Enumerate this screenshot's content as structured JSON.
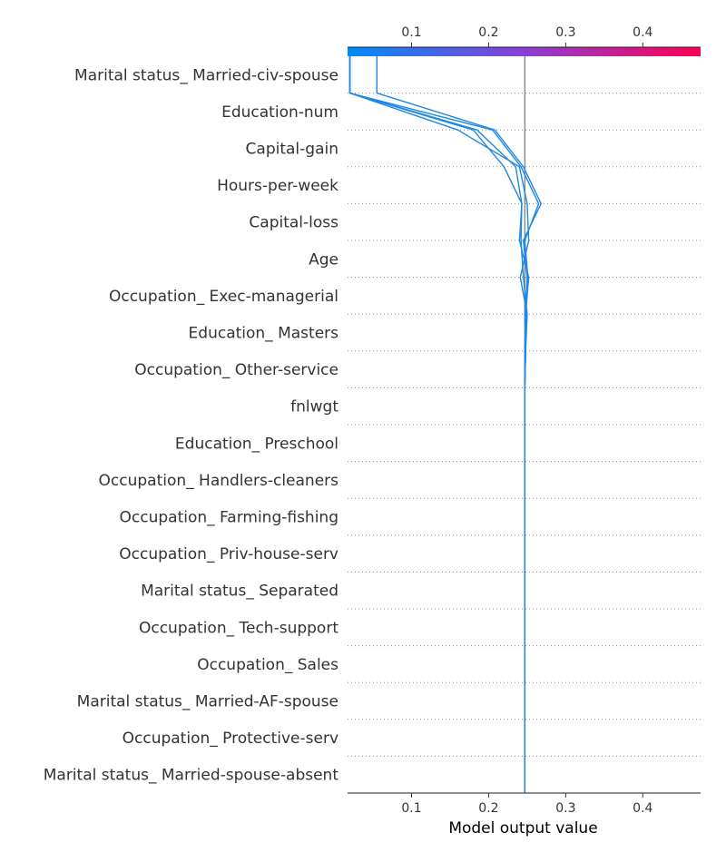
{
  "chart_data": {
    "type": "decision",
    "xlabel": "Model output value",
    "xticks": [
      0.1,
      0.2,
      0.3,
      0.4
    ],
    "xlim": [
      0.017,
      0.475
    ],
    "base_value": 0.247,
    "colormap": [
      "#008bfb",
      "#8a3fd6",
      "#ff0052"
    ],
    "line_color": "#1e88e5",
    "features": [
      "Marital status_ Married-civ-spouse",
      "Education-num",
      "Capital-gain",
      "Hours-per-week",
      "Capital-loss",
      "Age",
      "Occupation_ Exec-managerial",
      "Education_ Masters",
      "Occupation_ Other-service",
      "fnlwgt",
      "Education_ Preschool",
      "Occupation_ Handlers-cleaners",
      "Occupation_ Farming-fishing",
      "Occupation_ Priv-house-serv",
      "Marital status_ Separated",
      "Occupation_ Tech-support",
      "Occupation_ Sales",
      "Marital status_ Married-AF-spouse",
      "Occupation_ Protective-serv",
      "Marital status_ Married-spouse-absent"
    ],
    "series": [
      {
        "values": [
          0.247,
          0.247,
          0.247,
          0.247,
          0.247,
          0.247,
          0.247,
          0.247,
          0.247,
          0.247,
          0.247,
          0.247,
          0.248,
          0.247,
          0.251,
          0.247,
          0.265,
          0.242,
          0.205,
          0.02
        ]
      },
      {
        "values": [
          0.247,
          0.247,
          0.247,
          0.247,
          0.247,
          0.247,
          0.247,
          0.247,
          0.247,
          0.247,
          0.247,
          0.247,
          0.248,
          0.25,
          0.245,
          0.242,
          0.243,
          0.22,
          0.18,
          0.02
        ]
      },
      {
        "values": [
          0.247,
          0.247,
          0.247,
          0.247,
          0.247,
          0.247,
          0.247,
          0.247,
          0.247,
          0.247,
          0.247,
          0.247,
          0.248,
          0.248,
          0.25,
          0.245,
          0.268,
          0.245,
          0.208,
          0.055
        ]
      },
      {
        "values": [
          0.247,
          0.247,
          0.247,
          0.247,
          0.247,
          0.247,
          0.247,
          0.247,
          0.247,
          0.247,
          0.247,
          0.247,
          0.247,
          0.248,
          0.252,
          0.24,
          0.243,
          0.235,
          0.185,
          0.02
        ]
      },
      {
        "values": [
          0.247,
          0.247,
          0.247,
          0.247,
          0.247,
          0.247,
          0.247,
          0.247,
          0.247,
          0.247,
          0.247,
          0.247,
          0.247,
          0.25,
          0.241,
          0.252,
          0.25,
          0.24,
          0.16,
          0.02
        ]
      }
    ]
  }
}
